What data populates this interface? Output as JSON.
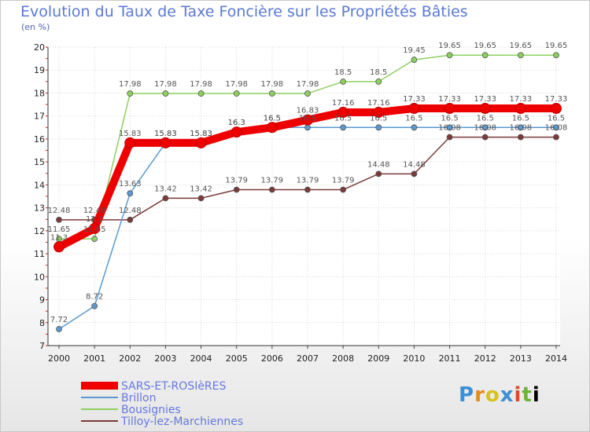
{
  "chart_data": {
    "type": "line",
    "title": "Evolution du Taux de Taxe Foncière sur les Propriétés Bâties",
    "ylabel": "(en %)",
    "x": [
      "2000",
      "2001",
      "2002",
      "2003",
      "2004",
      "2005",
      "2006",
      "2007",
      "2008",
      "2009",
      "2010",
      "2011",
      "2012",
      "2013",
      "2014"
    ],
    "ylim": [
      7,
      20
    ],
    "yticks": [
      "7",
      "8",
      "9",
      "10",
      "11",
      "12",
      "13",
      "14",
      "15",
      "16",
      "17",
      "18",
      "19",
      "20"
    ],
    "series": [
      {
        "name": "SARS-ET-ROSIèRES",
        "color": "#ee0000",
        "values": [
          11.3,
          12.1,
          15.83,
          15.83,
          15.83,
          16.3,
          16.5,
          16.83,
          17.16,
          17.16,
          17.33,
          17.33,
          17.33,
          17.33,
          17.33
        ],
        "labels": [
          "11.3",
          "12.1",
          "15.83",
          "15.83",
          "15.83",
          "16.3",
          "16.5",
          "16.83",
          "17.16",
          "17.16",
          "17.33",
          "17.33",
          "17.33",
          "17.33",
          "17.33"
        ]
      },
      {
        "name": "Brillon",
        "color": "#5a9ad0",
        "values": [
          7.72,
          8.72,
          13.63,
          15.83,
          15.83,
          16.3,
          16.5,
          16.5,
          16.5,
          16.5,
          16.5,
          16.5,
          16.5,
          16.5,
          16.5
        ],
        "labels": [
          "7.72",
          "8.72",
          "13.63",
          "15.83",
          "15.83",
          "16.3",
          "16.5",
          "16.5",
          "16.5",
          "16.5",
          "16.5",
          "16.5",
          "16.5",
          "16.5",
          "16.5"
        ]
      },
      {
        "name": "Bousignies",
        "color": "#8ed060",
        "values": [
          11.65,
          11.65,
          17.98,
          17.98,
          17.98,
          17.98,
          17.98,
          17.98,
          18.5,
          18.5,
          19.45,
          19.65,
          19.65,
          19.65,
          19.65
        ],
        "labels": [
          "11.65",
          "11.65",
          "17.98",
          "17.98",
          "17.98",
          "17.98",
          "17.98",
          "17.98",
          "18.5",
          "18.5",
          "19.45",
          "19.65",
          "19.65",
          "19.65",
          "19.65"
        ]
      },
      {
        "name": "Tilloy-lez-Marchiennes",
        "color": "#7a3a3a",
        "values": [
          12.48,
          12.48,
          12.48,
          13.42,
          13.42,
          13.79,
          13.79,
          13.79,
          13.79,
          14.48,
          14.48,
          16.08,
          16.08,
          16.08,
          16.08
        ],
        "labels": [
          "12.48",
          "12.48",
          "12.48",
          "13.42",
          "13.42",
          "13.79",
          "13.79",
          "13.79",
          "13.79",
          "14.48",
          "14.48",
          "16.08",
          "16.08",
          "16.08",
          "16.08"
        ]
      }
    ]
  },
  "brand": {
    "logo_text": [
      "P",
      "r",
      "o",
      "x",
      "i",
      "t",
      "i"
    ]
  }
}
